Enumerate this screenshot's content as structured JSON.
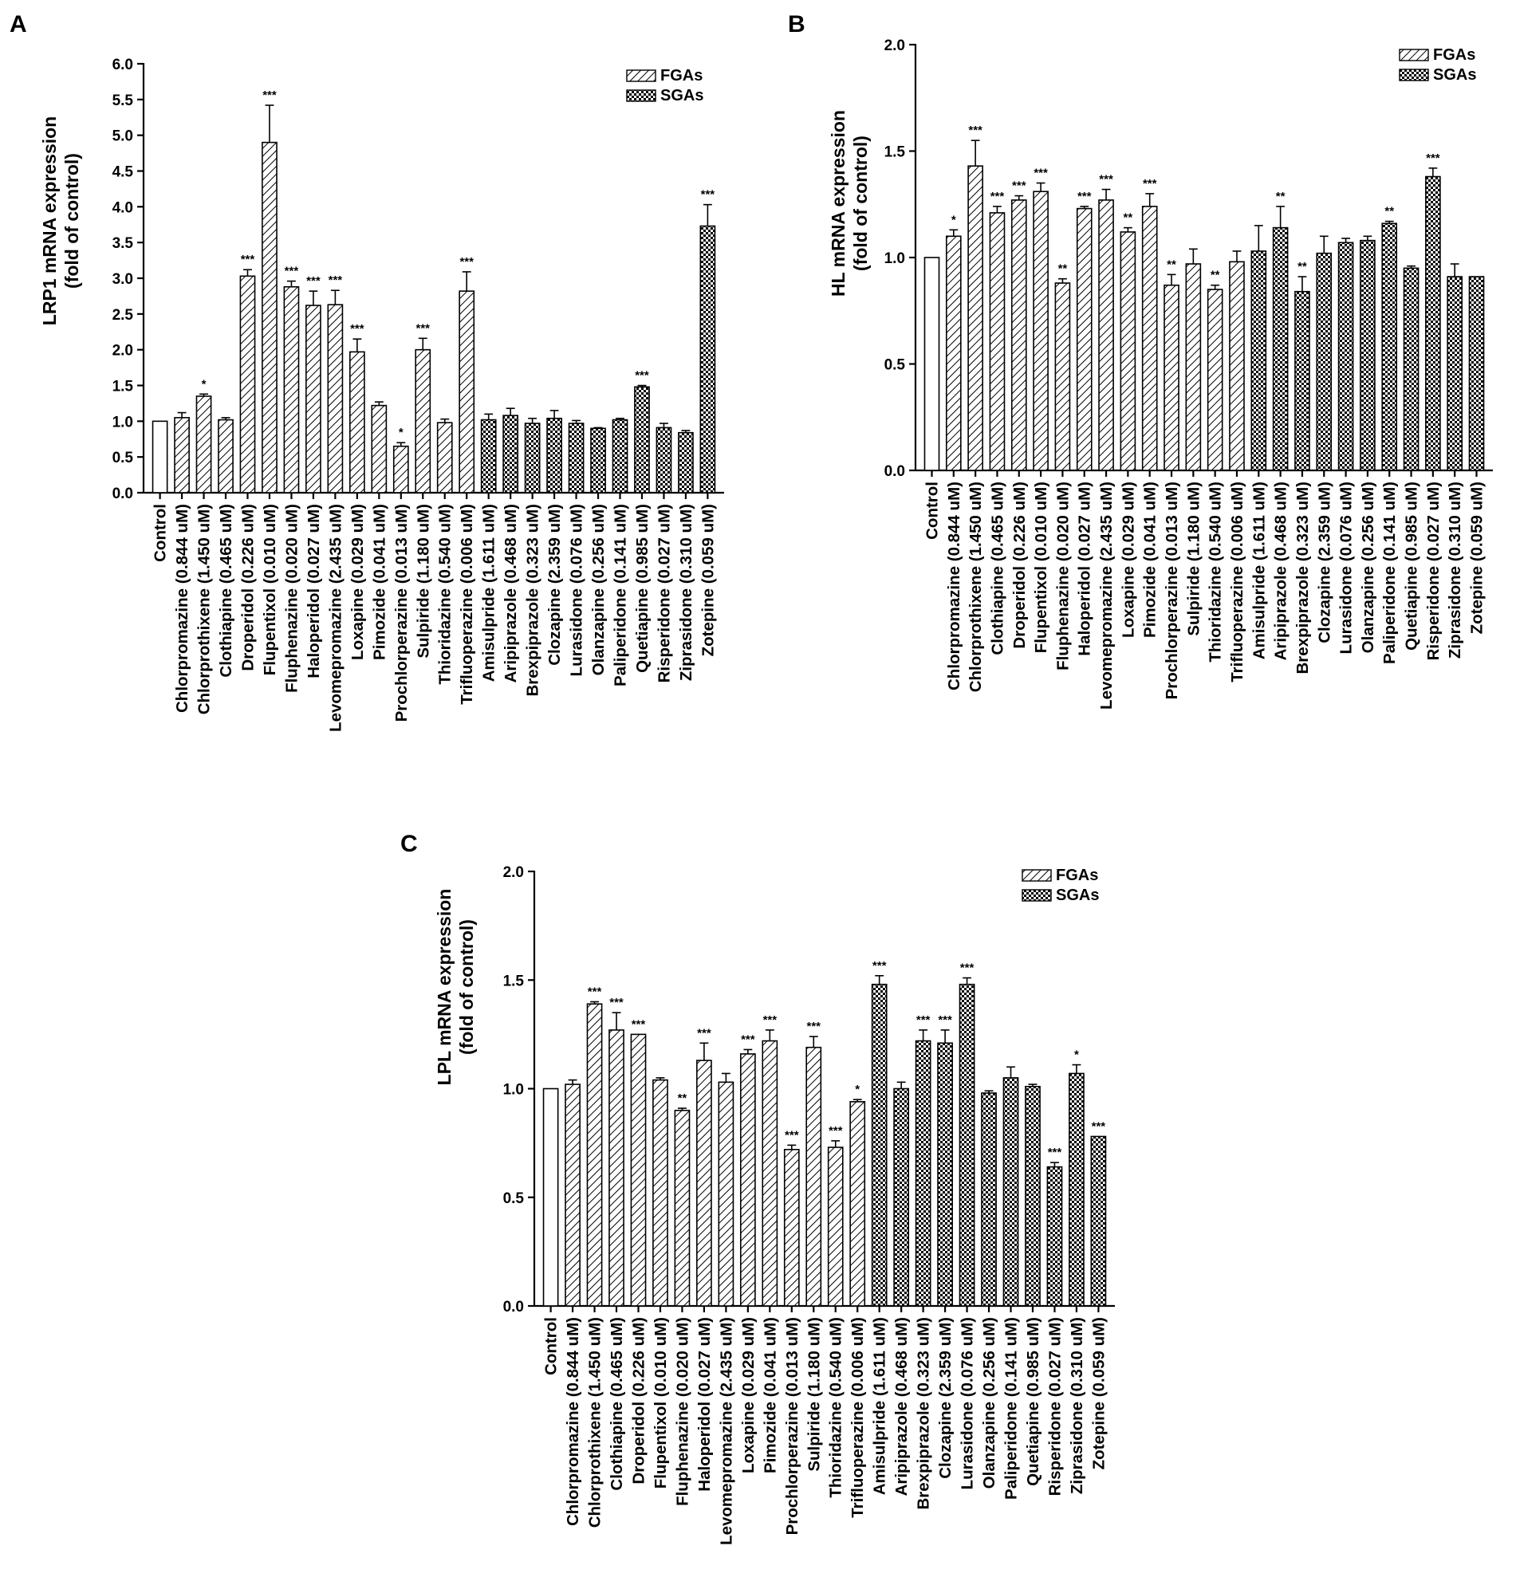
{
  "categories": [
    "Control",
    "Chlorpromazine (0.844 uM)",
    "Chlorprothixene (1.450 uM)",
    "Clothiapine (0.465 uM)",
    "Droperidol (0.226 uM)",
    "Flupentixol (0.010 uM)",
    "Fluphenazine (0.020 uM)",
    "Haloperidol (0.027 uM)",
    "Levomepromazine (2.435 uM)",
    "Loxapine (0.029 uM)",
    "Pimozide (0.041 uM)",
    "Prochlorperazine (0.013 uM)",
    "Sulpiride (1.180 uM)",
    "Thioridazine (0.540 uM)",
    "Trifluoperazine (0.006 uM)",
    "Amisulpride (1.611 uM)",
    "Aripiprazole (0.468 uM)",
    "Brexpiprazole (0.323 uM)",
    "Clozapine (2.359 uM)",
    "Lurasidone (0.076 uM)",
    "Olanzapine (0.256 uM)",
    "Paliperidone (0.141 uM)",
    "Quetiapine (0.985 uM)",
    "Risperidone (0.027 uM)",
    "Ziprasidone (0.310 uM)",
    "Zotepine (0.059 uM)"
  ],
  "groups": [
    "control",
    "FGAs",
    "FGAs",
    "FGAs",
    "FGAs",
    "FGAs",
    "FGAs",
    "FGAs",
    "FGAs",
    "FGAs",
    "FGAs",
    "FGAs",
    "FGAs",
    "FGAs",
    "FGAs",
    "SGAs",
    "SGAs",
    "SGAs",
    "SGAs",
    "SGAs",
    "SGAs",
    "SGAs",
    "SGAs",
    "SGAs",
    "SGAs",
    "SGAs"
  ],
  "legend": {
    "fga": "FGAs",
    "sga": "SGAs"
  },
  "colors": {
    "bar_fill": "#ffffff",
    "stroke": "#000000",
    "sga_dark": "#000000"
  },
  "chart_data": [
    {
      "panel": "A",
      "type": "bar",
      "ylabel_line1": "LRP1 mRNA expression",
      "ylabel_line2": "(fold of control)",
      "ylim": [
        0,
        6
      ],
      "yticks": [
        "0.0",
        "0.5",
        "1.0",
        "1.5",
        "2.0",
        "2.5",
        "3.0",
        "3.5",
        "4.0",
        "4.5",
        "5.0",
        "5.5",
        "6.0"
      ],
      "values": [
        1.0,
        1.05,
        1.35,
        1.02,
        3.03,
        4.9,
        2.88,
        2.62,
        2.63,
        1.97,
        1.22,
        0.65,
        2.0,
        0.98,
        2.82,
        1.02,
        1.08,
        0.97,
        1.04,
        0.97,
        0.9,
        1.02,
        1.48,
        0.91,
        0.84,
        3.73
      ],
      "errors": [
        0.0,
        0.07,
        0.03,
        0.03,
        0.09,
        0.52,
        0.08,
        0.2,
        0.2,
        0.18,
        0.05,
        0.05,
        0.16,
        0.05,
        0.27,
        0.08,
        0.1,
        0.07,
        0.11,
        0.04,
        0.01,
        0.02,
        0.02,
        0.06,
        0.03,
        0.3
      ],
      "significance": [
        "",
        "",
        "*",
        "",
        "***",
        "***",
        "***",
        "***",
        "***",
        "***",
        "",
        "*",
        "***",
        "",
        "***",
        "",
        "",
        "",
        "",
        "",
        "",
        "",
        "***",
        "",
        "",
        "***"
      ],
      "legend_placement": "top-right"
    },
    {
      "panel": "B",
      "type": "bar",
      "ylabel_line1": "HL mRNA expression",
      "ylabel_line2": "(fold of control)",
      "ylim": [
        0,
        2
      ],
      "yticks": [
        "0.0",
        "0.5",
        "1.0",
        "1.5",
        "2.0"
      ],
      "values": [
        1.0,
        1.1,
        1.43,
        1.21,
        1.27,
        1.31,
        0.88,
        1.23,
        1.27,
        1.12,
        1.24,
        0.87,
        0.97,
        0.85,
        0.98,
        1.03,
        1.14,
        0.84,
        1.02,
        1.07,
        1.08,
        1.16,
        0.95,
        1.38,
        0.91,
        0.91
      ],
      "errors": [
        0.0,
        0.03,
        0.12,
        0.03,
        0.02,
        0.04,
        0.02,
        0.01,
        0.05,
        0.02,
        0.06,
        0.05,
        0.07,
        0.02,
        0.05,
        0.12,
        0.1,
        0.07,
        0.08,
        0.02,
        0.02,
        0.01,
        0.01,
        0.04,
        0.06,
        0.0
      ],
      "significance": [
        "",
        "*",
        "***",
        "***",
        "***",
        "***",
        "**",
        "***",
        "***",
        "**",
        "***",
        "**",
        "",
        "**",
        "",
        "",
        "**",
        "**",
        "",
        "",
        "",
        "**",
        "",
        "***",
        "",
        ""
      ],
      "legend_placement": "top-right"
    },
    {
      "panel": "C",
      "type": "bar",
      "ylabel_line1": "LPL mRNA expression",
      "ylabel_line2": "(fold of control)",
      "ylim": [
        0,
        2
      ],
      "yticks": [
        "0.0",
        "0.5",
        "1.0",
        "1.5",
        "2.0"
      ],
      "values": [
        1.0,
        1.02,
        1.39,
        1.27,
        1.25,
        1.04,
        0.9,
        1.13,
        1.03,
        1.16,
        1.22,
        0.72,
        1.19,
        0.73,
        0.94,
        1.48,
        1.0,
        1.22,
        1.21,
        1.48,
        0.98,
        1.05,
        1.01,
        0.64,
        1.07,
        0.78
      ],
      "errors": [
        0.0,
        0.02,
        0.01,
        0.08,
        0.0,
        0.01,
        0.01,
        0.08,
        0.04,
        0.02,
        0.05,
        0.02,
        0.05,
        0.03,
        0.01,
        0.04,
        0.03,
        0.05,
        0.06,
        0.03,
        0.01,
        0.05,
        0.01,
        0.02,
        0.04,
        0.0
      ],
      "significance": [
        "",
        "",
        "***",
        "***",
        "***",
        "",
        "**",
        "***",
        "",
        "***",
        "***",
        "***",
        "***",
        "***",
        "*",
        "***",
        "",
        "***",
        "***",
        "***",
        "",
        "",
        "",
        "***",
        "*",
        "***"
      ],
      "legend_placement": "top-right"
    }
  ]
}
